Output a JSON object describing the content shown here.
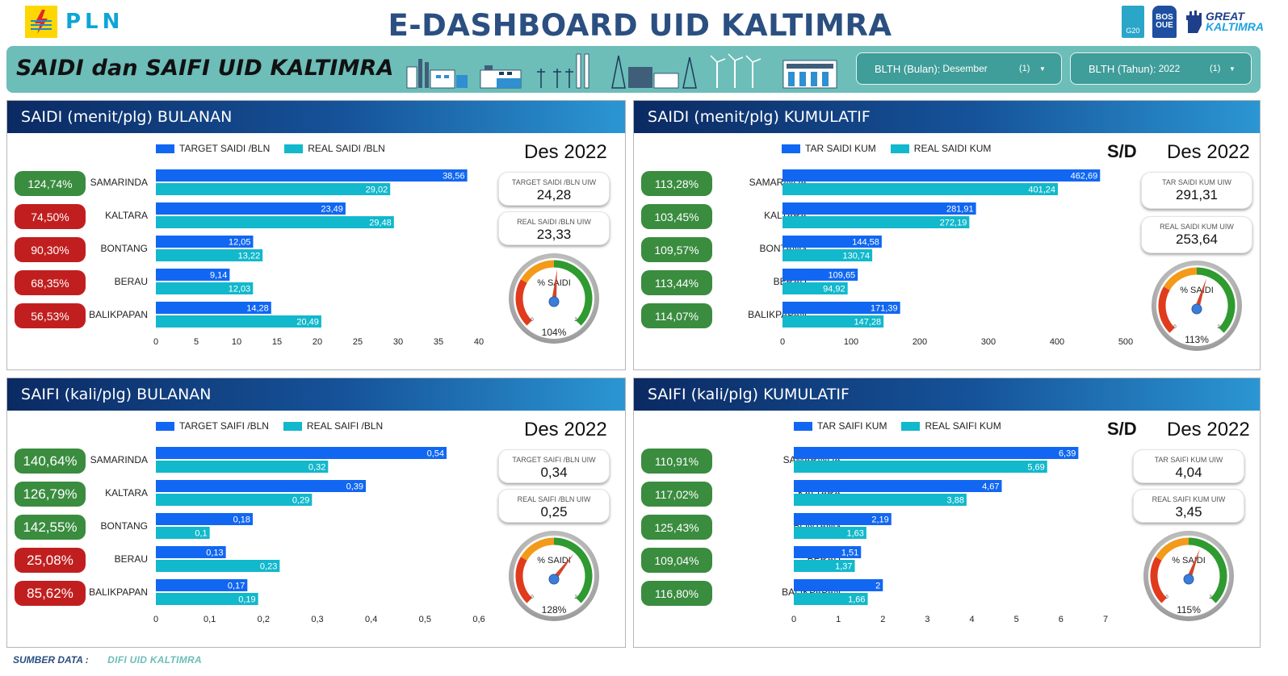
{
  "header": {
    "brand": "PLN",
    "title": "E-DASHBOARD UID KALTIMRA",
    "logos": {
      "g20": "G20",
      "bos_top": "BOS",
      "bos_bottom": "OUE",
      "great": "GREAT",
      "kaltimra": "KALTIMRA"
    }
  },
  "band": {
    "title": "SAIDI dan SAIFI UID KALTIMRA",
    "filters": [
      {
        "label": "BLTH (Bulan):",
        "value": "Desember",
        "count": "(1)"
      },
      {
        "label": "BLTH (Tahun):",
        "value": "2022",
        "count": "(1)"
      }
    ]
  },
  "colors": {
    "target": "#1167f2",
    "real": "#12b8cc",
    "badge_green": "#3a8c3f",
    "badge_red": "#c11f1f"
  },
  "chart_data": [
    {
      "id": "saidi_bulanan",
      "type": "bar",
      "title": "SAIDI (menit/plg) BULANAN",
      "period": "Des 2022",
      "sd_label": "",
      "categories": [
        "SAMARINDA",
        "KALTARA",
        "BONTANG",
        "BERAU",
        "BALIKPAPAN"
      ],
      "series": [
        {
          "name": "TARGET SAIDI /BLN",
          "values": [
            38.56,
            23.49,
            12.05,
            9.14,
            14.28
          ],
          "labels": [
            "38,56",
            "23,49",
            "12,05",
            "9,14",
            "14,28"
          ]
        },
        {
          "name": "REAL SAIDI /BLN",
          "values": [
            29.02,
            29.48,
            13.22,
            12.03,
            20.49
          ],
          "labels": [
            "29,02",
            "29,48",
            "13,22",
            "12,03",
            "20,49"
          ]
        }
      ],
      "xlim": [
        0,
        40
      ],
      "ticks": [
        0,
        5,
        10,
        15,
        20,
        25,
        30,
        35,
        40
      ],
      "tick_labels": [
        "0",
        "5",
        "10",
        "15",
        "20",
        "25",
        "30",
        "35",
        "40"
      ],
      "badges": [
        {
          "text": "124,74%",
          "status": "green"
        },
        {
          "text": "74,50%",
          "status": "red"
        },
        {
          "text": "90,30%",
          "status": "red"
        },
        {
          "text": "68,35%",
          "status": "red"
        },
        {
          "text": "56,53%",
          "status": "red"
        }
      ],
      "cards": [
        {
          "title": "TARGET SAIDI /BLN UIW",
          "value": "24,28"
        },
        {
          "title": "REAL SAIDI /BLN UIW",
          "value": "23,33"
        }
      ],
      "gauge": {
        "label": "% SAIDI",
        "value": 104,
        "value_label": "104%",
        "min_label": "0",
        "max_label": "2"
      }
    },
    {
      "id": "saidi_kumulatif",
      "type": "bar",
      "title": "SAIDI (menit/plg) KUMULATIF",
      "period": "Des 2022",
      "sd_label": "S/D",
      "categories": [
        "SAMARINDA",
        "KALTARA",
        "BONTANG",
        "BERAU",
        "BALIKPAPAN"
      ],
      "series": [
        {
          "name": "TAR SAIDI KUM",
          "values": [
            462.69,
            281.91,
            144.58,
            109.65,
            171.39
          ],
          "labels": [
            "462,69",
            "281,91",
            "144,58",
            "109,65",
            "171,39"
          ]
        },
        {
          "name": "REAL SAIDI KUM",
          "values": [
            401.24,
            272.19,
            130.74,
            94.92,
            147.28
          ],
          "labels": [
            "401,24",
            "272,19",
            "130,74",
            "94,92",
            "147,28"
          ]
        }
      ],
      "xlim": [
        0,
        500
      ],
      "ticks": [
        0,
        100,
        200,
        300,
        400,
        500
      ],
      "tick_labels": [
        "0",
        "100",
        "200",
        "300",
        "400",
        "500"
      ],
      "badges": [
        {
          "text": "113,28%",
          "status": "green"
        },
        {
          "text": "103,45%",
          "status": "green"
        },
        {
          "text": "109,57%",
          "status": "green"
        },
        {
          "text": "113,44%",
          "status": "green"
        },
        {
          "text": "114,07%",
          "status": "green"
        }
      ],
      "cards": [
        {
          "title": "TAR SAIDI KUM UIW",
          "value": "291,31"
        },
        {
          "title": "REAL SAIDI KUM UIW",
          "value": "253,64"
        }
      ],
      "gauge": {
        "label": "% SAIDI",
        "value": 113,
        "value_label": "113%",
        "min_label": "0",
        "max_label": "2"
      }
    },
    {
      "id": "saifi_bulanan",
      "type": "bar",
      "title": "SAIFI (kali/plg) BULANAN",
      "period": "Des 2022",
      "sd_label": "",
      "categories": [
        "SAMARINDA",
        "KALTARA",
        "BONTANG",
        "BERAU",
        "BALIKPAPAN"
      ],
      "series": [
        {
          "name": "TARGET SAIFI /BLN",
          "values": [
            0.54,
            0.39,
            0.18,
            0.13,
            0.17
          ],
          "labels": [
            "0,54",
            "0,39",
            "0,18",
            "0,13",
            "0,17"
          ]
        },
        {
          "name": "REAL SAIFI /BLN",
          "values": [
            0.32,
            0.29,
            0.1,
            0.23,
            0.19
          ],
          "labels": [
            "0,32",
            "0,29",
            "0,1",
            "0,23",
            "0,19"
          ]
        }
      ],
      "xlim": [
        0,
        0.6
      ],
      "ticks": [
        0,
        0.1,
        0.2,
        0.3,
        0.4,
        0.5,
        0.6
      ],
      "tick_labels": [
        "0",
        "0,1",
        "0,2",
        "0,3",
        "0,4",
        "0,5",
        "0,6"
      ],
      "badges": [
        {
          "text": "140,64%",
          "status": "green"
        },
        {
          "text": "126,79%",
          "status": "green"
        },
        {
          "text": "142,55%",
          "status": "green"
        },
        {
          "text": "25,08%",
          "status": "red"
        },
        {
          "text": "85,62%",
          "status": "red"
        }
      ],
      "cards": [
        {
          "title": "TARGET SAIFI /BLN UIW",
          "value": "0,34"
        },
        {
          "title": "REAL SAIFI /BLN UIW",
          "value": "0,25"
        }
      ],
      "gauge": {
        "label": "% SAIDI",
        "value": 128,
        "value_label": "128%",
        "min_label": "0",
        "max_label": "2"
      }
    },
    {
      "id": "saifi_kumulatif",
      "type": "bar",
      "title": "SAIFI (kali/plg) KUMULATIF",
      "period": "Des 2022",
      "sd_label": "S/D",
      "categories": [
        "SAMARINDA",
        "KALTARA",
        "BONTANG",
        "BERAU",
        "BALIKPAPAN"
      ],
      "series": [
        {
          "name": "TAR SAIFI KUM",
          "values": [
            6.39,
            4.67,
            2.19,
            1.51,
            2
          ],
          "labels": [
            "6,39",
            "4,67",
            "2,19",
            "1,51",
            "2"
          ]
        },
        {
          "name": "REAL SAIFI KUM",
          "values": [
            5.69,
            3.88,
            1.63,
            1.37,
            1.66
          ],
          "labels": [
            "5,69",
            "3,88",
            "1,63",
            "1,37",
            "1,66"
          ]
        }
      ],
      "xlim": [
        0,
        7
      ],
      "ticks": [
        0,
        1,
        2,
        3,
        4,
        5,
        6,
        7
      ],
      "tick_labels": [
        "0",
        "1",
        "2",
        "3",
        "4",
        "5",
        "6",
        "7"
      ],
      "badges": [
        {
          "text": "110,91%",
          "status": "green"
        },
        {
          "text": "117,02%",
          "status": "green"
        },
        {
          "text": "125,43%",
          "status": "green"
        },
        {
          "text": "109,04%",
          "status": "green"
        },
        {
          "text": "116,80%",
          "status": "green"
        }
      ],
      "cards": [
        {
          "title": "TAR SAIFI KUM UIW",
          "value": "4,04"
        },
        {
          "title": "REAL SAIFI KUM UIW",
          "value": "3,45"
        }
      ],
      "gauge": {
        "label": "% SAIDI",
        "value": 115,
        "value_label": "115%",
        "min_label": "0",
        "max_label": "2"
      }
    }
  ],
  "footer": {
    "label": "SUMBER DATA :",
    "source": "DIFI  UID  KALTIMRA"
  }
}
